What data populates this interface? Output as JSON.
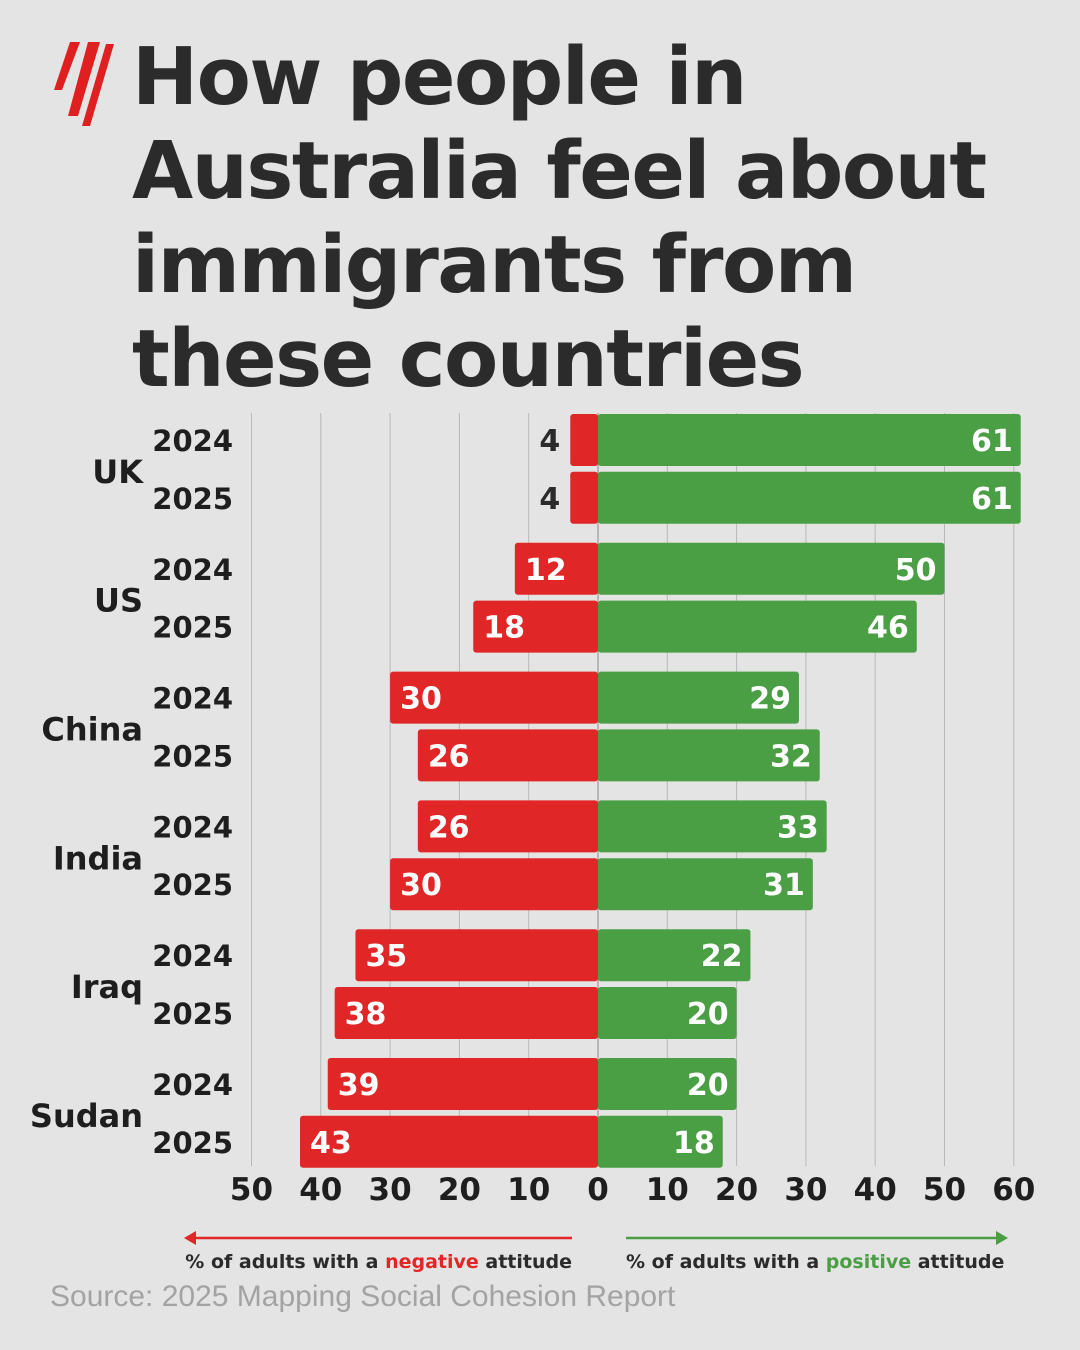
{
  "logo": {
    "name": "sbs-logo-icon",
    "color": "#e02020"
  },
  "title_lines": [
    "How people in",
    "Australia feel about",
    "immigrants from",
    "these countries"
  ],
  "source": "Source: 2025 Mapping Social Cohesion Report",
  "colors": {
    "negative": "#e02626",
    "positive": "#4a9e44",
    "text": "#2b2b2b",
    "grid": "#b8b8b8"
  },
  "chart_data": {
    "type": "bar",
    "orientation": "horizontal-diverging",
    "groups": [
      {
        "country": "UK",
        "rows": [
          {
            "year": "2024",
            "negative": 4,
            "positive": 61
          },
          {
            "year": "2025",
            "negative": 4,
            "positive": 61
          }
        ]
      },
      {
        "country": "US",
        "rows": [
          {
            "year": "2024",
            "negative": 12,
            "positive": 50
          },
          {
            "year": "2025",
            "negative": 18,
            "positive": 46
          }
        ]
      },
      {
        "country": "China",
        "rows": [
          {
            "year": "2024",
            "negative": 30,
            "positive": 29
          },
          {
            "year": "2025",
            "negative": 26,
            "positive": 32
          }
        ]
      },
      {
        "country": "India",
        "rows": [
          {
            "year": "2024",
            "negative": 26,
            "positive": 33
          },
          {
            "year": "2025",
            "negative": 30,
            "positive": 31
          }
        ]
      },
      {
        "country": "Iraq",
        "rows": [
          {
            "year": "2024",
            "negative": 35,
            "positive": 22
          },
          {
            "year": "2025",
            "negative": 38,
            "positive": 20
          }
        ]
      },
      {
        "country": "Sudan",
        "rows": [
          {
            "year": "2024",
            "negative": 39,
            "positive": 20
          },
          {
            "year": "2025",
            "negative": 43,
            "positive": 18
          }
        ]
      }
    ],
    "x_ticks_negative": [
      50,
      40,
      30,
      20,
      10
    ],
    "x_ticks_positive": [
      0,
      10,
      20,
      30,
      40,
      50,
      60
    ],
    "xlim": [
      -50,
      60
    ],
    "grid": true,
    "legend": {
      "negative": {
        "prefix": "% of adults with a ",
        "highlight": "negative",
        "suffix": " attitude"
      },
      "positive": {
        "prefix": "% of adults with a ",
        "highlight": "positive",
        "suffix": " attitude"
      }
    }
  }
}
